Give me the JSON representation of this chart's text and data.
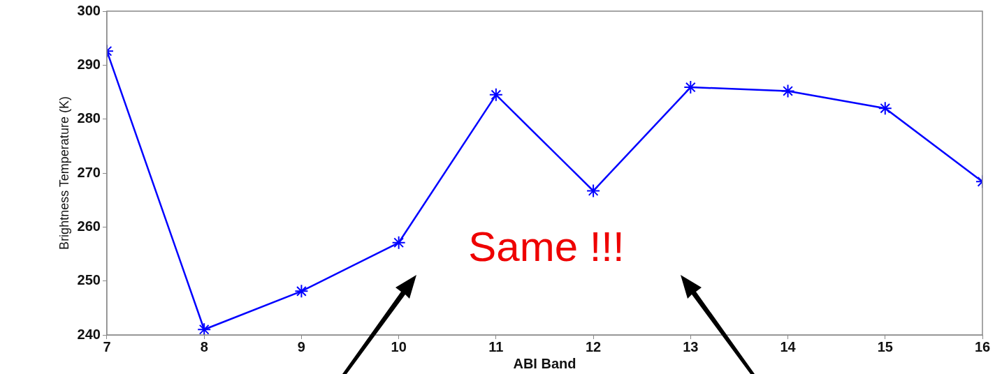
{
  "chart_data": {
    "type": "line",
    "xlabel": "ABI Band",
    "ylabel": "Brightness Temperature (K)",
    "x": [
      7,
      8,
      9,
      10,
      11,
      12,
      13,
      14,
      15,
      16
    ],
    "series": [
      {
        "color": "#0000ff",
        "values": [
          292.6,
          241,
          248.1,
          257.1,
          284.5,
          266.7,
          285.9,
          285.2,
          282,
          268.4
        ]
      }
    ],
    "xlim": [
      7,
      16
    ],
    "xticks": [
      7,
      8,
      9,
      10,
      11,
      12,
      13,
      14,
      15,
      16
    ],
    "ylim": [
      240,
      300
    ],
    "yticks": [
      240,
      250,
      260,
      270,
      280,
      290,
      300
    ],
    "marker": "cross",
    "line_style": "solid",
    "grid": false,
    "legend": false,
    "annotations": [
      "Same !!!"
    ]
  }
}
